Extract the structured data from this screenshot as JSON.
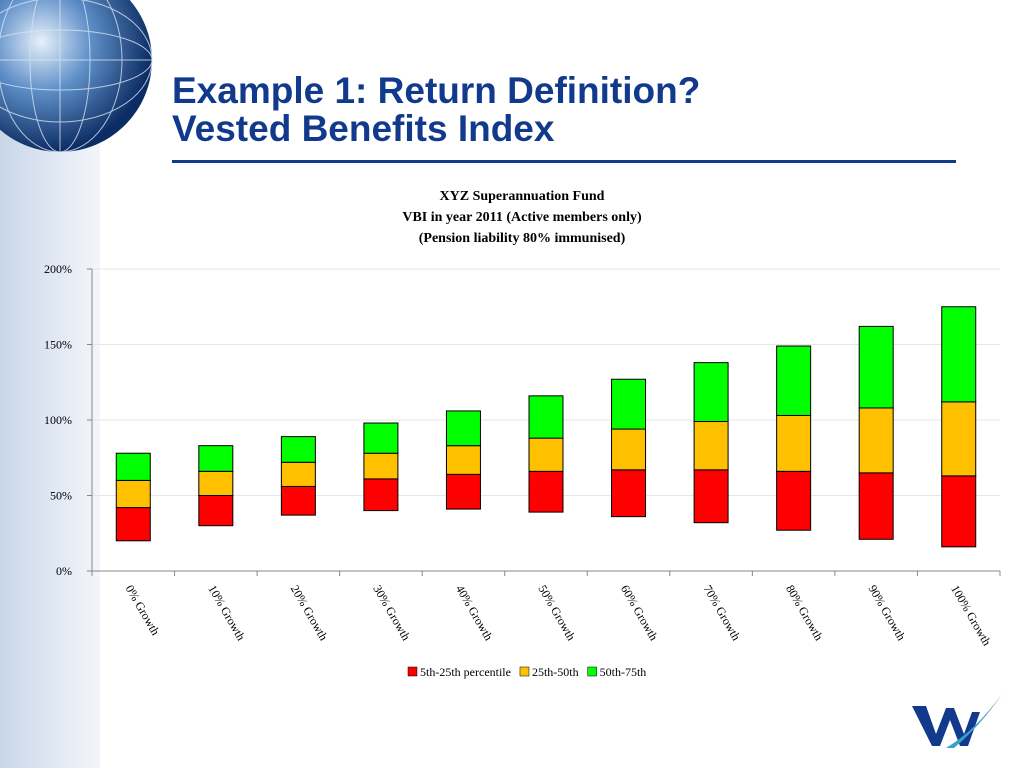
{
  "slide": {
    "title_line1": "Example 1: Return Definition?",
    "title_line2": "Vested Benefits Index",
    "accent_color": "#123a8c"
  },
  "chart_data": {
    "type": "bar",
    "stacked": true,
    "floating": true,
    "title_lines": [
      "XYZ Superannuation Fund",
      "VBI in year 2011 (Active members only)",
      "(Pension liability 80% immunised)"
    ],
    "categories": [
      "0% Growth",
      "10% Growth",
      "20% Growth",
      "30% Growth",
      "40% Growth",
      "50% Growth",
      "60% Growth",
      "70% Growth",
      "80% Growth",
      "90% Growth",
      "100% Growth"
    ],
    "base": [
      20,
      30,
      37,
      40,
      41,
      39,
      36,
      32,
      27,
      21,
      16
    ],
    "series": [
      {
        "name": "5th-25th percentile",
        "color": "#ff0000",
        "values": [
          22,
          20,
          19,
          21,
          23,
          27,
          31,
          35,
          39,
          44,
          47
        ]
      },
      {
        "name": "25th-50th",
        "color": "#ffc000",
        "values": [
          18,
          16,
          16,
          17,
          19,
          22,
          27,
          32,
          37,
          43,
          49
        ]
      },
      {
        "name": "50th-75th",
        "color": "#00ff00",
        "values": [
          18,
          17,
          17,
          20,
          23,
          28,
          33,
          39,
          46,
          54,
          63
        ]
      }
    ],
    "ylim": [
      0,
      200
    ],
    "yticks": [
      0,
      50,
      100,
      150,
      200
    ],
    "ytick_labels": [
      "0%",
      "50%",
      "100%",
      "150%",
      "200%"
    ],
    "xlabel": "",
    "ylabel": "",
    "grid": true,
    "legend_position": "bottom"
  }
}
